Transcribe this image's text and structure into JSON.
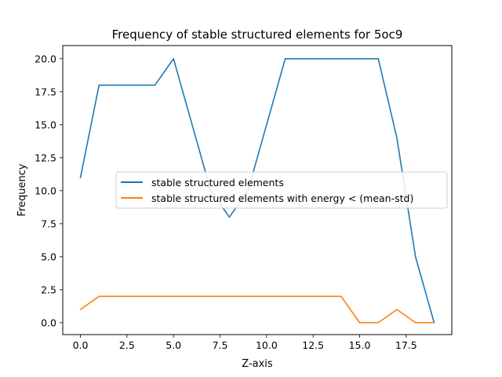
{
  "chart_data": {
    "type": "line",
    "title": "Frequency of stable structured elements for 5oc9",
    "xlabel": "Z-axis",
    "ylabel": "Frequency",
    "xlim": [
      -0.95,
      19.95
    ],
    "ylim": [
      -0.9,
      21.0
    ],
    "xticks": [
      0.0,
      2.5,
      5.0,
      7.5,
      10.0,
      12.5,
      15.0,
      17.5
    ],
    "xtick_labels": [
      "0.0",
      "2.5",
      "5.0",
      "7.5",
      "10.0",
      "12.5",
      "15.0",
      "17.5"
    ],
    "yticks": [
      0.0,
      2.5,
      5.0,
      7.5,
      10.0,
      12.5,
      15.0,
      17.5,
      20.0
    ],
    "ytick_labels": [
      "0.0",
      "2.5",
      "5.0",
      "7.5",
      "10.0",
      "12.5",
      "15.0",
      "17.5",
      "20.0"
    ],
    "grid": false,
    "legend_position": "center-right",
    "x": [
      0,
      1,
      2,
      3,
      4,
      5,
      6,
      7,
      8,
      9,
      10,
      11,
      12,
      13,
      14,
      15,
      16,
      17,
      18,
      19
    ],
    "series": [
      {
        "name": "stable structured elements",
        "color": "#1f77b4",
        "values": [
          11,
          18,
          18,
          18,
          18,
          20,
          15,
          10,
          8,
          10,
          15,
          20,
          20,
          20,
          20,
          20,
          20,
          14,
          5,
          0
        ]
      },
      {
        "name": "stable structured elements with energy < (mean-std)",
        "color": "#ff7f0e",
        "values": [
          1,
          2,
          2,
          2,
          2,
          2,
          2,
          2,
          2,
          2,
          2,
          2,
          2,
          2,
          2,
          0,
          0,
          1,
          0,
          0
        ]
      }
    ]
  }
}
